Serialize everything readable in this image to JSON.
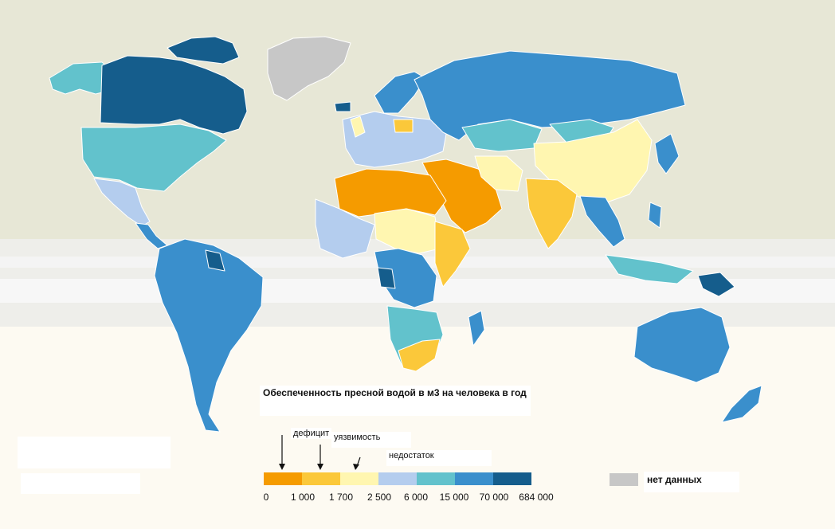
{
  "title": "Обеспеченность пресной водой в м3 на человека в год",
  "categories": [
    {
      "label": "дефицит",
      "color": "#f5a200"
    },
    {
      "label": "уязвимость",
      "color": "#fbc83a"
    },
    {
      "label": "недостаток",
      "color": "#fff4b2"
    }
  ],
  "scale": {
    "colors": [
      "#f59b00",
      "#fbc83a",
      "#fff6b0",
      "#b4cdee",
      "#62c2cc",
      "#3a8fcc",
      "#155d8c"
    ],
    "ticks": [
      "0",
      "1 000",
      "1 700",
      "2 500",
      "6 000",
      "15 000",
      "70 000",
      "684 000"
    ]
  },
  "nodata": {
    "label": "нет данных",
    "color": "#c7c7c7"
  }
}
